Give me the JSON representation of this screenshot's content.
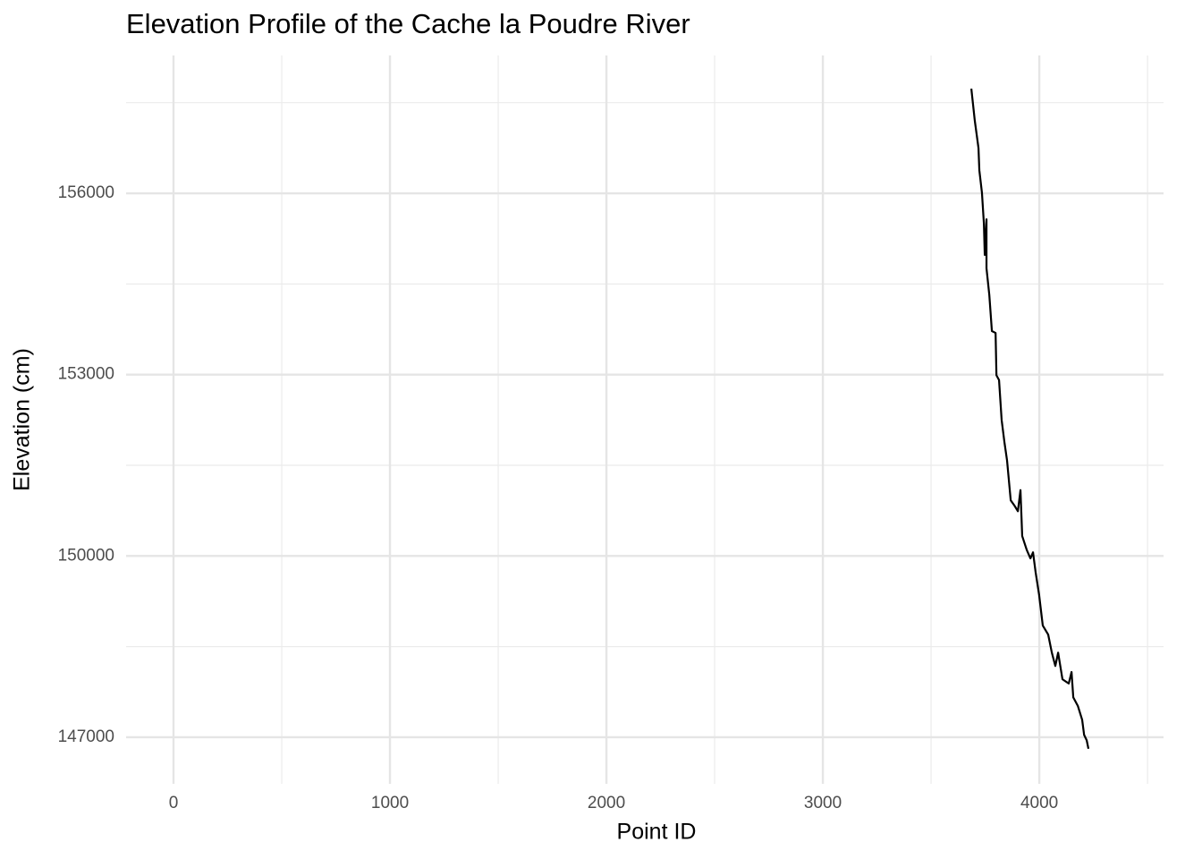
{
  "chart_data": {
    "type": "line",
    "title": "Elevation Profile of the Cache la Poudre River",
    "x_label": "Point ID",
    "y_label": "Elevation (cm)",
    "x": [
      3686,
      3702,
      3719,
      3723,
      3735,
      3744,
      3748,
      3756,
      3756,
      3769,
      3781,
      3798,
      3802,
      3814,
      3826,
      3839,
      3851,
      3868,
      3884,
      3901,
      3913,
      3921,
      3942,
      3959,
      3971,
      3983,
      3999,
      4016,
      4041,
      4058,
      4074,
      4087,
      4107,
      4136,
      4149,
      4157,
      4178,
      4198,
      4207,
      4219,
      4227
    ],
    "series": [
      {
        "name": "Elevation",
        "color": "#000000",
        "values": [
          157730,
          157200,
          156750,
          156380,
          156010,
          155500,
          154980,
          155570,
          154760,
          154320,
          153720,
          153690,
          152990,
          152910,
          152250,
          151880,
          151580,
          150920,
          150840,
          150740,
          151090,
          150330,
          150100,
          149960,
          150060,
          149730,
          149360,
          148850,
          148700,
          148400,
          148180,
          148400,
          147960,
          147890,
          148080,
          147660,
          147520,
          147290,
          147040,
          146950,
          146810
        ]
      }
    ],
    "xlim": [
      -219,
      4574
    ],
    "ylim": [
      146230,
      158280
    ],
    "xticks": [
      0,
      1000,
      2000,
      3000,
      4000
    ],
    "yticks": [
      147000,
      150000,
      153000,
      156000
    ],
    "x_minor_ticks": [
      500,
      1500,
      2500,
      3500,
      4500
    ],
    "y_minor_ticks": [
      148500,
      151500,
      154500,
      157500
    ],
    "grid": true
  }
}
